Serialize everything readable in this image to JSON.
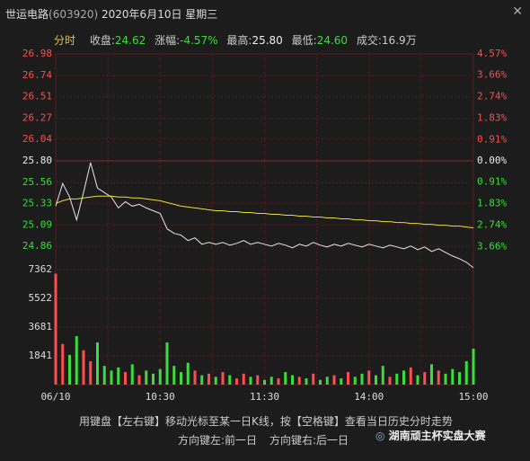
{
  "header": {
    "name": "世运电路",
    "code": "(603920)",
    "date": "2020年6月10日",
    "weekday": "星期三",
    "tab": "分时",
    "stats": [
      {
        "label": "收盘:",
        "value": "24.62"
      },
      {
        "label": "涨幅:",
        "value": "-4.57%"
      },
      {
        "label": "最高:",
        "value": "25.80"
      },
      {
        "label": "最低:",
        "value": "24.60"
      },
      {
        "label": "成交:",
        "value": "16.9万"
      }
    ]
  },
  "chart_data": [
    {
      "type": "line",
      "xlim": [
        0,
        240
      ],
      "x": [
        0,
        4,
        8,
        12,
        16,
        20,
        24,
        28,
        32,
        36,
        40,
        44,
        48,
        52,
        56,
        60,
        64,
        68,
        72,
        76,
        80,
        84,
        88,
        92,
        96,
        100,
        104,
        108,
        112,
        116,
        120,
        124,
        128,
        132,
        136,
        140,
        144,
        148,
        152,
        156,
        160,
        164,
        168,
        172,
        176,
        180,
        184,
        188,
        192,
        196,
        200,
        204,
        208,
        212,
        216,
        220,
        224,
        228,
        232,
        236,
        240
      ],
      "series": [
        {
          "color": "#e8e8e8",
          "values": [
            25.3,
            25.55,
            25.4,
            25.15,
            25.45,
            25.78,
            25.5,
            25.45,
            25.4,
            25.28,
            25.35,
            25.3,
            25.32,
            25.28,
            25.25,
            25.22,
            25.05,
            25.0,
            24.98,
            24.92,
            24.95,
            24.88,
            24.9,
            24.88,
            24.9,
            24.87,
            24.89,
            24.92,
            24.88,
            24.9,
            24.88,
            24.86,
            24.89,
            24.87,
            24.84,
            24.88,
            24.86,
            24.9,
            24.87,
            24.85,
            24.88,
            24.86,
            24.89,
            24.87,
            24.85,
            24.88,
            24.86,
            24.84,
            24.87,
            24.85,
            24.83,
            24.86,
            24.82,
            24.85,
            24.8,
            24.83,
            24.79,
            24.75,
            24.72,
            24.68,
            24.62
          ]
        },
        {
          "color": "#e6e033",
          "values": [
            25.33,
            25.36,
            25.38,
            25.38,
            25.39,
            25.4,
            25.41,
            25.41,
            25.41,
            25.4,
            25.4,
            25.39,
            25.39,
            25.38,
            25.37,
            25.36,
            25.34,
            25.32,
            25.3,
            25.29,
            25.28,
            25.27,
            25.26,
            25.25,
            25.25,
            25.24,
            25.24,
            25.23,
            25.23,
            25.22,
            25.22,
            25.21,
            25.21,
            25.2,
            25.2,
            25.19,
            25.19,
            25.18,
            25.18,
            25.17,
            25.17,
            25.16,
            25.16,
            25.15,
            25.15,
            25.14,
            25.14,
            25.13,
            25.13,
            25.12,
            25.12,
            25.11,
            25.11,
            25.1,
            25.1,
            25.09,
            25.09,
            25.08,
            25.08,
            25.07,
            25.06
          ]
        }
      ],
      "ylim": [
        24.62,
        26.98
      ],
      "yticks": [
        26.98,
        26.74,
        26.51,
        26.27,
        26.04,
        {
          "value": 25.8,
          "label": "25.80"
        },
        25.56,
        25.33,
        25.09,
        24.86
      ],
      "y2lim": [
        -4.57,
        4.57
      ],
      "y2ticks": [
        {
          "value": 4.57,
          "label": "4.57%"
        },
        {
          "value": 3.66,
          "label": "3.66%"
        },
        {
          "value": 2.74,
          "label": "2.74%"
        },
        {
          "value": 1.83,
          "label": "1.83%"
        },
        {
          "value": 0.91,
          "label": "0.91%"
        },
        {
          "value": 0,
          "label": "0.00%"
        },
        {
          "value": -0.91,
          "label": "0.91%"
        },
        {
          "value": -1.83,
          "label": "1.83%"
        },
        {
          "value": -2.74,
          "label": "2.74%"
        },
        {
          "value": -3.66,
          "label": "3.66%"
        }
      ],
      "up_color": "#ff4d4d",
      "down_color": "#3ddc3d",
      "grid": true
    },
    {
      "type": "bar",
      "xlim": [
        0,
        240
      ],
      "xticks": [
        {
          "value": 0,
          "label": "06/10"
        },
        {
          "value": 60,
          "label": "10:30"
        },
        {
          "value": 120,
          "label": "11:30"
        },
        {
          "value": 180,
          "label": "14:00"
        },
        {
          "value": 240,
          "label": "15:00"
        }
      ],
      "values": [
        7100,
        2600,
        1900,
        3100,
        2200,
        1500,
        2700,
        1200,
        900,
        1100,
        800,
        1300,
        600,
        900,
        700,
        1000,
        2700,
        1200,
        800,
        1400,
        900,
        600,
        700,
        500,
        800,
        600,
        400,
        700,
        500,
        600,
        300,
        500,
        400,
        800,
        600,
        500,
        400,
        700,
        300,
        500,
        600,
        400,
        800,
        500,
        700,
        900,
        600,
        1200,
        500,
        700,
        900,
        1100,
        600,
        800,
        1300,
        900,
        700,
        1000,
        800,
        1500,
        2300
      ],
      "ylim": [
        0,
        7362
      ],
      "yticks": [
        1841,
        3681,
        5522,
        7362
      ],
      "up_color": "#ff4d4d",
      "down_color": "#3ddc3d",
      "grid": true
    }
  ],
  "footer": {
    "hint": "用键盘【左右键】移动光标至某一日K线，按【空格键】查看当日历史分时走势",
    "left": "方向键左:前一日",
    "right": "方向键右:后一日"
  },
  "watermark": "湖南顽主杯实盘大赛"
}
